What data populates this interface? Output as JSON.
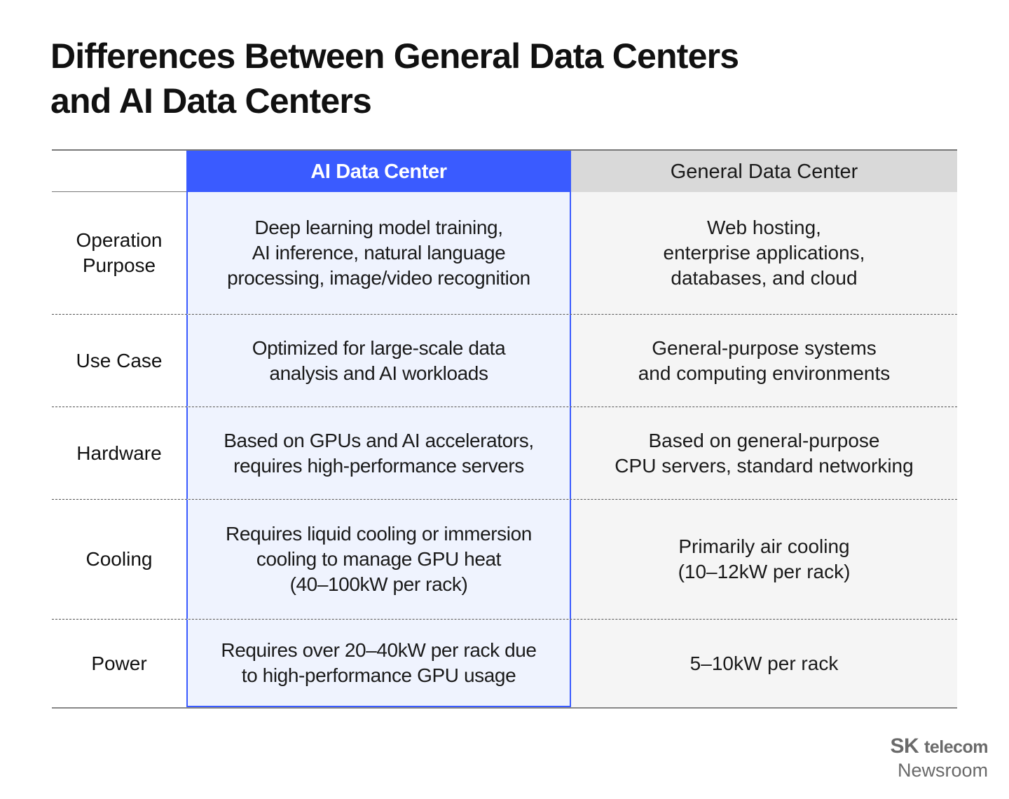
{
  "title": {
    "line1": "Differences Between General Data Centers",
    "line2": "and AI Data Centers"
  },
  "table": {
    "headers": {
      "label": "",
      "ai": "AI Data Center",
      "general": "General Data Center"
    },
    "rows": [
      {
        "label": [
          "Operation",
          "Purpose"
        ],
        "ai": [
          "Deep learning model training,",
          "AI inference, natural language",
          "processing, image/video recognition"
        ],
        "general": [
          "Web hosting,",
          "enterprise applications,",
          "databases, and cloud"
        ]
      },
      {
        "label": [
          "Use Case"
        ],
        "ai": [
          "Optimized for large-scale data",
          "analysis and AI workloads"
        ],
        "general": [
          "General-purpose systems",
          "and computing environments"
        ]
      },
      {
        "label": [
          "Hardware"
        ],
        "ai": [
          "Based on GPUs and AI accelerators,",
          "requires high-performance servers"
        ],
        "general": [
          "Based on general-purpose",
          "CPU servers, standard networking"
        ]
      },
      {
        "label": [
          "Cooling"
        ],
        "ai": [
          "Requires liquid cooling or immersion",
          "cooling to manage GPU heat",
          "(40–100kW per rack)"
        ],
        "general": [
          "Primarily air cooling",
          "(10–12kW per rack)"
        ]
      },
      {
        "label": [
          "Power"
        ],
        "ai": [
          "Requires over 20–40kW per rack due",
          "to high-performance GPU usage"
        ],
        "general": [
          "5–10kW per rack"
        ]
      }
    ]
  },
  "brand": {
    "sk": "SK",
    "telecom": "telecom",
    "newsroom": "Newsroom"
  },
  "colors": {
    "accent": "#3a5bff",
    "ai_bg": "#eff3fe",
    "general_bg": "#f5f5f5",
    "general_header": "#d9d9d9"
  }
}
